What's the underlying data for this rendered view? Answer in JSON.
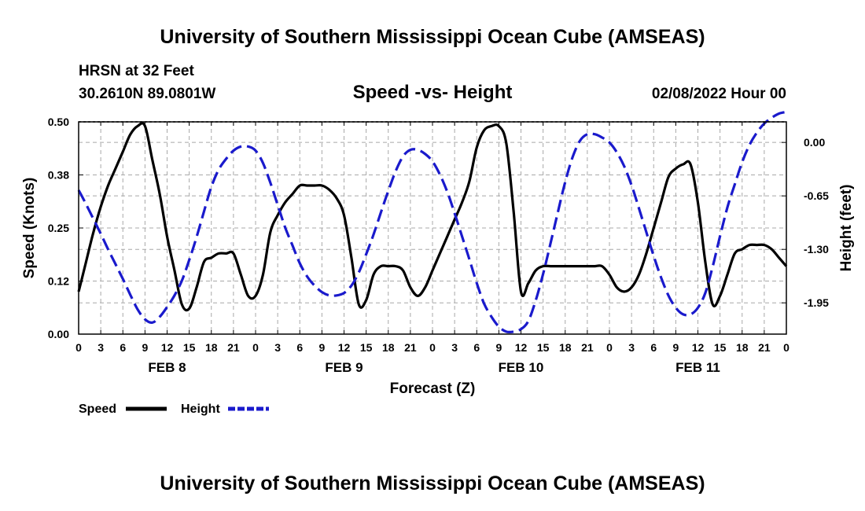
{
  "title": "University of Southern Mississippi Ocean Cube (AMSEAS)",
  "footer_title": "University of Southern Mississippi Ocean Cube (AMSEAS)",
  "station": {
    "name": "HRSN at 32 Feet",
    "coords": "30.2610N  89.0801W"
  },
  "date": "02/08/2022 Hour 00",
  "colors": {
    "speed": "#000000",
    "height": "#1a1acc",
    "grid": "#a8a8a8"
  },
  "chart_data": {
    "type": "line",
    "title": "Speed -vs- Height",
    "xlabel": "Forecast (Z)",
    "ylabel": "Speed (Knots)",
    "y2label": "Height (feet)",
    "xlim": [
      0,
      96
    ],
    "ylim": [
      0.0,
      0.5
    ],
    "y2lim": [
      -2.33,
      0.25
    ],
    "y_ticks": [
      "0.00",
      "0.12",
      "0.25",
      "0.38",
      "0.50"
    ],
    "y_tick_values": [
      0.0,
      0.125,
      0.25,
      0.375,
      0.5
    ],
    "y2_ticks": [
      "0.00",
      "-0.65",
      "-1.30",
      "-1.95"
    ],
    "y2_tick_values": [
      0.0,
      -0.65,
      -1.3,
      -1.95
    ],
    "x_tick_values": [
      0,
      3,
      6,
      9,
      12,
      15,
      18,
      21,
      24,
      27,
      30,
      33,
      36,
      39,
      42,
      45,
      48,
      51,
      54,
      57,
      60,
      63,
      66,
      69,
      72,
      75,
      78,
      81,
      84,
      87,
      90,
      93,
      96
    ],
    "x_tick_labels": [
      "0",
      "3",
      "6",
      "9",
      "12",
      "15",
      "18",
      "21",
      "0",
      "3",
      "6",
      "9",
      "12",
      "15",
      "18",
      "21",
      "0",
      "3",
      "6",
      "9",
      "12",
      "15",
      "18",
      "21",
      "0",
      "3",
      "6",
      "9",
      "12",
      "15",
      "18",
      "21",
      "0"
    ],
    "day_labels": [
      {
        "x": 12,
        "label": "FEB 8"
      },
      {
        "x": 36,
        "label": "FEB 9"
      },
      {
        "x": 60,
        "label": "FEB 10"
      },
      {
        "x": 84,
        "label": "FEB 11"
      }
    ],
    "grid": true,
    "legend": {
      "position": "bottom-left",
      "items": [
        "Speed",
        "Height"
      ]
    },
    "series": [
      {
        "name": "Speed",
        "axis": "left",
        "style": "solid",
        "x": [
          0,
          1,
          2,
          3,
          4,
          5,
          6,
          7,
          8,
          9,
          10,
          11,
          12,
          13,
          14,
          15,
          16,
          17,
          18,
          19,
          20,
          21,
          22,
          23,
          24,
          25,
          26,
          27,
          28,
          29,
          30,
          31,
          32,
          33,
          34,
          35,
          36,
          37,
          38,
          39,
          40,
          41,
          42,
          43,
          44,
          45,
          46,
          47,
          48,
          49,
          50,
          51,
          52,
          53,
          54,
          55,
          56,
          57,
          58,
          59,
          60,
          61,
          62,
          63,
          64,
          65,
          66,
          67,
          68,
          69,
          70,
          71,
          72,
          73,
          74,
          75,
          76,
          77,
          78,
          79,
          80,
          81,
          82,
          83,
          84,
          85,
          86,
          87,
          88,
          89,
          90,
          91,
          92,
          93,
          94,
          95,
          96
        ],
        "values": [
          0.1,
          0.17,
          0.24,
          0.3,
          0.35,
          0.39,
          0.43,
          0.47,
          0.49,
          0.49,
          0.41,
          0.33,
          0.23,
          0.15,
          0.07,
          0.06,
          0.11,
          0.17,
          0.18,
          0.19,
          0.19,
          0.19,
          0.14,
          0.09,
          0.09,
          0.14,
          0.24,
          0.28,
          0.31,
          0.33,
          0.35,
          0.35,
          0.35,
          0.35,
          0.34,
          0.32,
          0.28,
          0.18,
          0.07,
          0.08,
          0.14,
          0.16,
          0.16,
          0.16,
          0.15,
          0.11,
          0.09,
          0.11,
          0.15,
          0.19,
          0.23,
          0.27,
          0.31,
          0.36,
          0.44,
          0.48,
          0.49,
          0.49,
          0.45,
          0.29,
          0.1,
          0.12,
          0.15,
          0.16,
          0.16,
          0.16,
          0.16,
          0.16,
          0.16,
          0.16,
          0.16,
          0.16,
          0.14,
          0.11,
          0.1,
          0.11,
          0.14,
          0.19,
          0.25,
          0.31,
          0.37,
          0.39,
          0.4,
          0.4,
          0.31,
          0.17,
          0.07,
          0.09,
          0.14,
          0.19,
          0.2,
          0.21,
          0.21,
          0.21,
          0.2,
          0.18,
          0.16
        ]
      },
      {
        "name": "Height",
        "axis": "right",
        "style": "dashed",
        "x": [
          0,
          1,
          2,
          3,
          4,
          5,
          6,
          7,
          8,
          9,
          10,
          11,
          12,
          13,
          14,
          15,
          16,
          17,
          18,
          19,
          20,
          21,
          22,
          23,
          24,
          25,
          26,
          27,
          28,
          29,
          30,
          31,
          32,
          33,
          34,
          35,
          36,
          37,
          38,
          39,
          40,
          41,
          42,
          43,
          44,
          45,
          46,
          47,
          48,
          49,
          50,
          51,
          52,
          53,
          54,
          55,
          56,
          57,
          58,
          59,
          60,
          61,
          62,
          63,
          64,
          65,
          66,
          67,
          68,
          69,
          70,
          71,
          72,
          73,
          74,
          75,
          76,
          77,
          78,
          79,
          80,
          81,
          82,
          83,
          84,
          85,
          86,
          87,
          88,
          89,
          90,
          91,
          92,
          93,
          94,
          95,
          96
        ],
        "values": [
          -0.58,
          -0.75,
          -0.93,
          -1.11,
          -1.3,
          -1.48,
          -1.66,
          -1.85,
          -2.03,
          -2.15,
          -2.19,
          -2.12,
          -2.0,
          -1.86,
          -1.68,
          -1.43,
          -1.15,
          -0.84,
          -0.54,
          -0.33,
          -0.2,
          -0.1,
          -0.05,
          -0.05,
          -0.1,
          -0.25,
          -0.49,
          -0.76,
          -1.03,
          -1.25,
          -1.47,
          -1.63,
          -1.74,
          -1.82,
          -1.86,
          -1.86,
          -1.83,
          -1.74,
          -1.58,
          -1.36,
          -1.12,
          -0.85,
          -0.59,
          -0.35,
          -0.17,
          -0.09,
          -0.09,
          -0.14,
          -0.23,
          -0.39,
          -0.6,
          -0.86,
          -1.14,
          -1.42,
          -1.71,
          -1.96,
          -2.12,
          -2.24,
          -2.3,
          -2.3,
          -2.27,
          -2.17,
          -1.92,
          -1.6,
          -1.23,
          -0.85,
          -0.48,
          -0.18,
          0.02,
          0.1,
          0.1,
          0.06,
          0.0,
          -0.12,
          -0.29,
          -0.52,
          -0.8,
          -1.09,
          -1.38,
          -1.64,
          -1.86,
          -2.01,
          -2.09,
          -2.09,
          -2.01,
          -1.83,
          -1.51,
          -1.14,
          -0.79,
          -0.51,
          -0.24,
          -0.03,
          0.12,
          0.23,
          0.3,
          0.35,
          0.37
        ]
      }
    ]
  }
}
